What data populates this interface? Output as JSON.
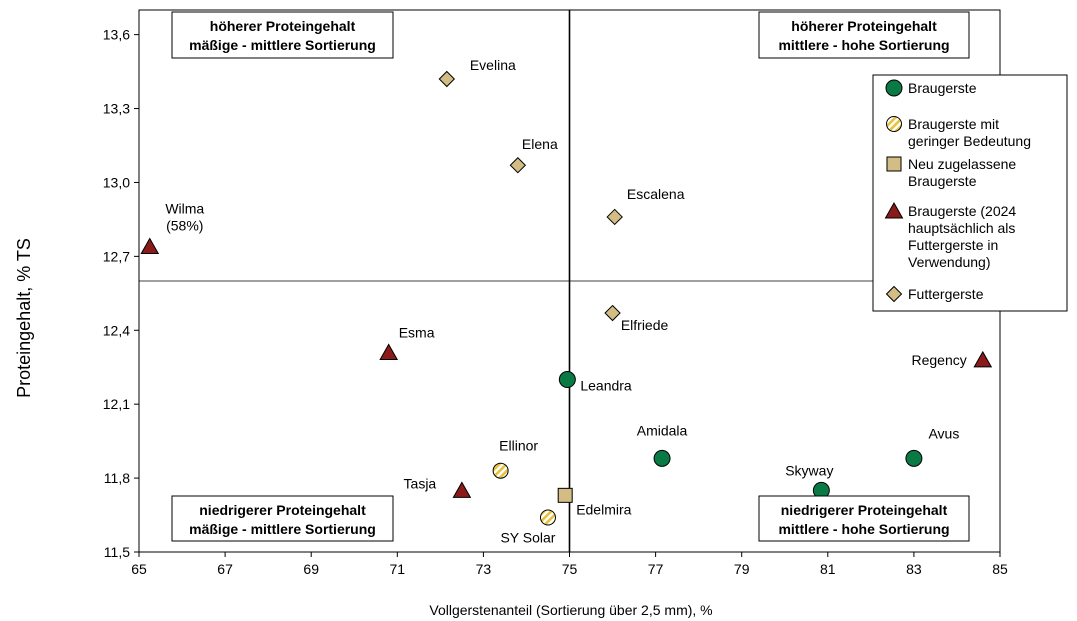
{
  "chart_data": {
    "type": "scatter",
    "xlabel": "Vollgerstenanteil (Sortierung über 2,5 mm), %",
    "ylabel": "Proteingehalt, % TS",
    "xlim": [
      65,
      85
    ],
    "ylim": [
      11.5,
      13.7
    ],
    "x_ticks": [
      "65",
      "67",
      "69",
      "71",
      "73",
      "75",
      "77",
      "79",
      "81",
      "83",
      "85"
    ],
    "y_ticks": [
      "11,5",
      "11,8",
      "12,1",
      "12,4",
      "12,7",
      "13,0",
      "13,3",
      "13,6"
    ],
    "divider_x": 75,
    "divider_y": 12.6,
    "grid": false,
    "legend_position": "right",
    "quadrants": [
      {
        "id": "top-left",
        "line1": "höherer Proteingehalt",
        "line2": "mäßige - mittlere Sortierung"
      },
      {
        "id": "top-right",
        "line1": "höherer Proteingehalt",
        "line2": "mittlere - hohe Sortierung"
      },
      {
        "id": "bottom-left",
        "line1": "niedrigerer Proteingehalt",
        "line2": "mäßige - mittlere Sortierung"
      },
      {
        "id": "bottom-right",
        "line1": "niedrigerer Proteingehalt",
        "line2": "mittlere - hohe Sortierung"
      }
    ],
    "series": [
      {
        "name": "Braugerste",
        "marker": "circle",
        "color": "#0a7a45",
        "points": [
          {
            "label": "Leandra",
            "x": 74.95,
            "y": 12.2
          },
          {
            "label": "Amidala",
            "x": 77.15,
            "y": 11.88
          },
          {
            "label": "Skyway",
            "x": 80.85,
            "y": 11.75
          },
          {
            "label": "Avus",
            "x": 83.0,
            "y": 11.88
          }
        ]
      },
      {
        "name": "Braugerste mit geringer Bedeutung",
        "marker": "hatched-circle",
        "color": "#e8c23a",
        "points": [
          {
            "label": "Ellinor",
            "x": 73.4,
            "y": 11.83
          },
          {
            "label": "SY Solar",
            "x": 74.5,
            "y": 11.64
          }
        ]
      },
      {
        "name": "Neu zugelassene Braugerste",
        "marker": "square",
        "color": "#d4bd84",
        "points": [
          {
            "label": "Edelmira",
            "x": 74.9,
            "y": 11.73
          }
        ]
      },
      {
        "name": "Braugerste (2024 hauptsächlich als Futtergerste in Verwendung)",
        "marker": "triangle",
        "color": "#8b1a1a",
        "points": [
          {
            "label": "Wilma\n(58%)",
            "x": 65.25,
            "y": 12.74
          },
          {
            "label": "Esma",
            "x": 70.8,
            "y": 12.31
          },
          {
            "label": "Tasja",
            "x": 72.5,
            "y": 11.75
          },
          {
            "label": "Regency",
            "x": 84.6,
            "y": 12.28
          }
        ]
      },
      {
        "name": "Futtergerste",
        "marker": "diamond",
        "color": "#d4bd84",
        "points": [
          {
            "label": "Evelina",
            "x": 72.15,
            "y": 13.42
          },
          {
            "label": "Elena",
            "x": 73.8,
            "y": 13.07
          },
          {
            "label": "Escalena",
            "x": 76.05,
            "y": 12.86
          },
          {
            "label": "Elfriede",
            "x": 76.0,
            "y": 12.47
          }
        ]
      }
    ],
    "legend": [
      {
        "marker": "circle",
        "lines": [
          "Braugerste"
        ]
      },
      {
        "marker": "hatched-circle",
        "lines": [
          "Braugerste mit",
          "geringer Bedeutung"
        ]
      },
      {
        "marker": "square",
        "lines": [
          "Neu zugelassene",
          "Braugerste"
        ]
      },
      {
        "marker": "triangle",
        "lines": [
          "Braugerste (2024",
          "hauptsächlich als",
          "Futtergerste in",
          "Verwendung)"
        ]
      },
      {
        "marker": "diamond",
        "lines": [
          "Futtergerste"
        ]
      }
    ]
  }
}
